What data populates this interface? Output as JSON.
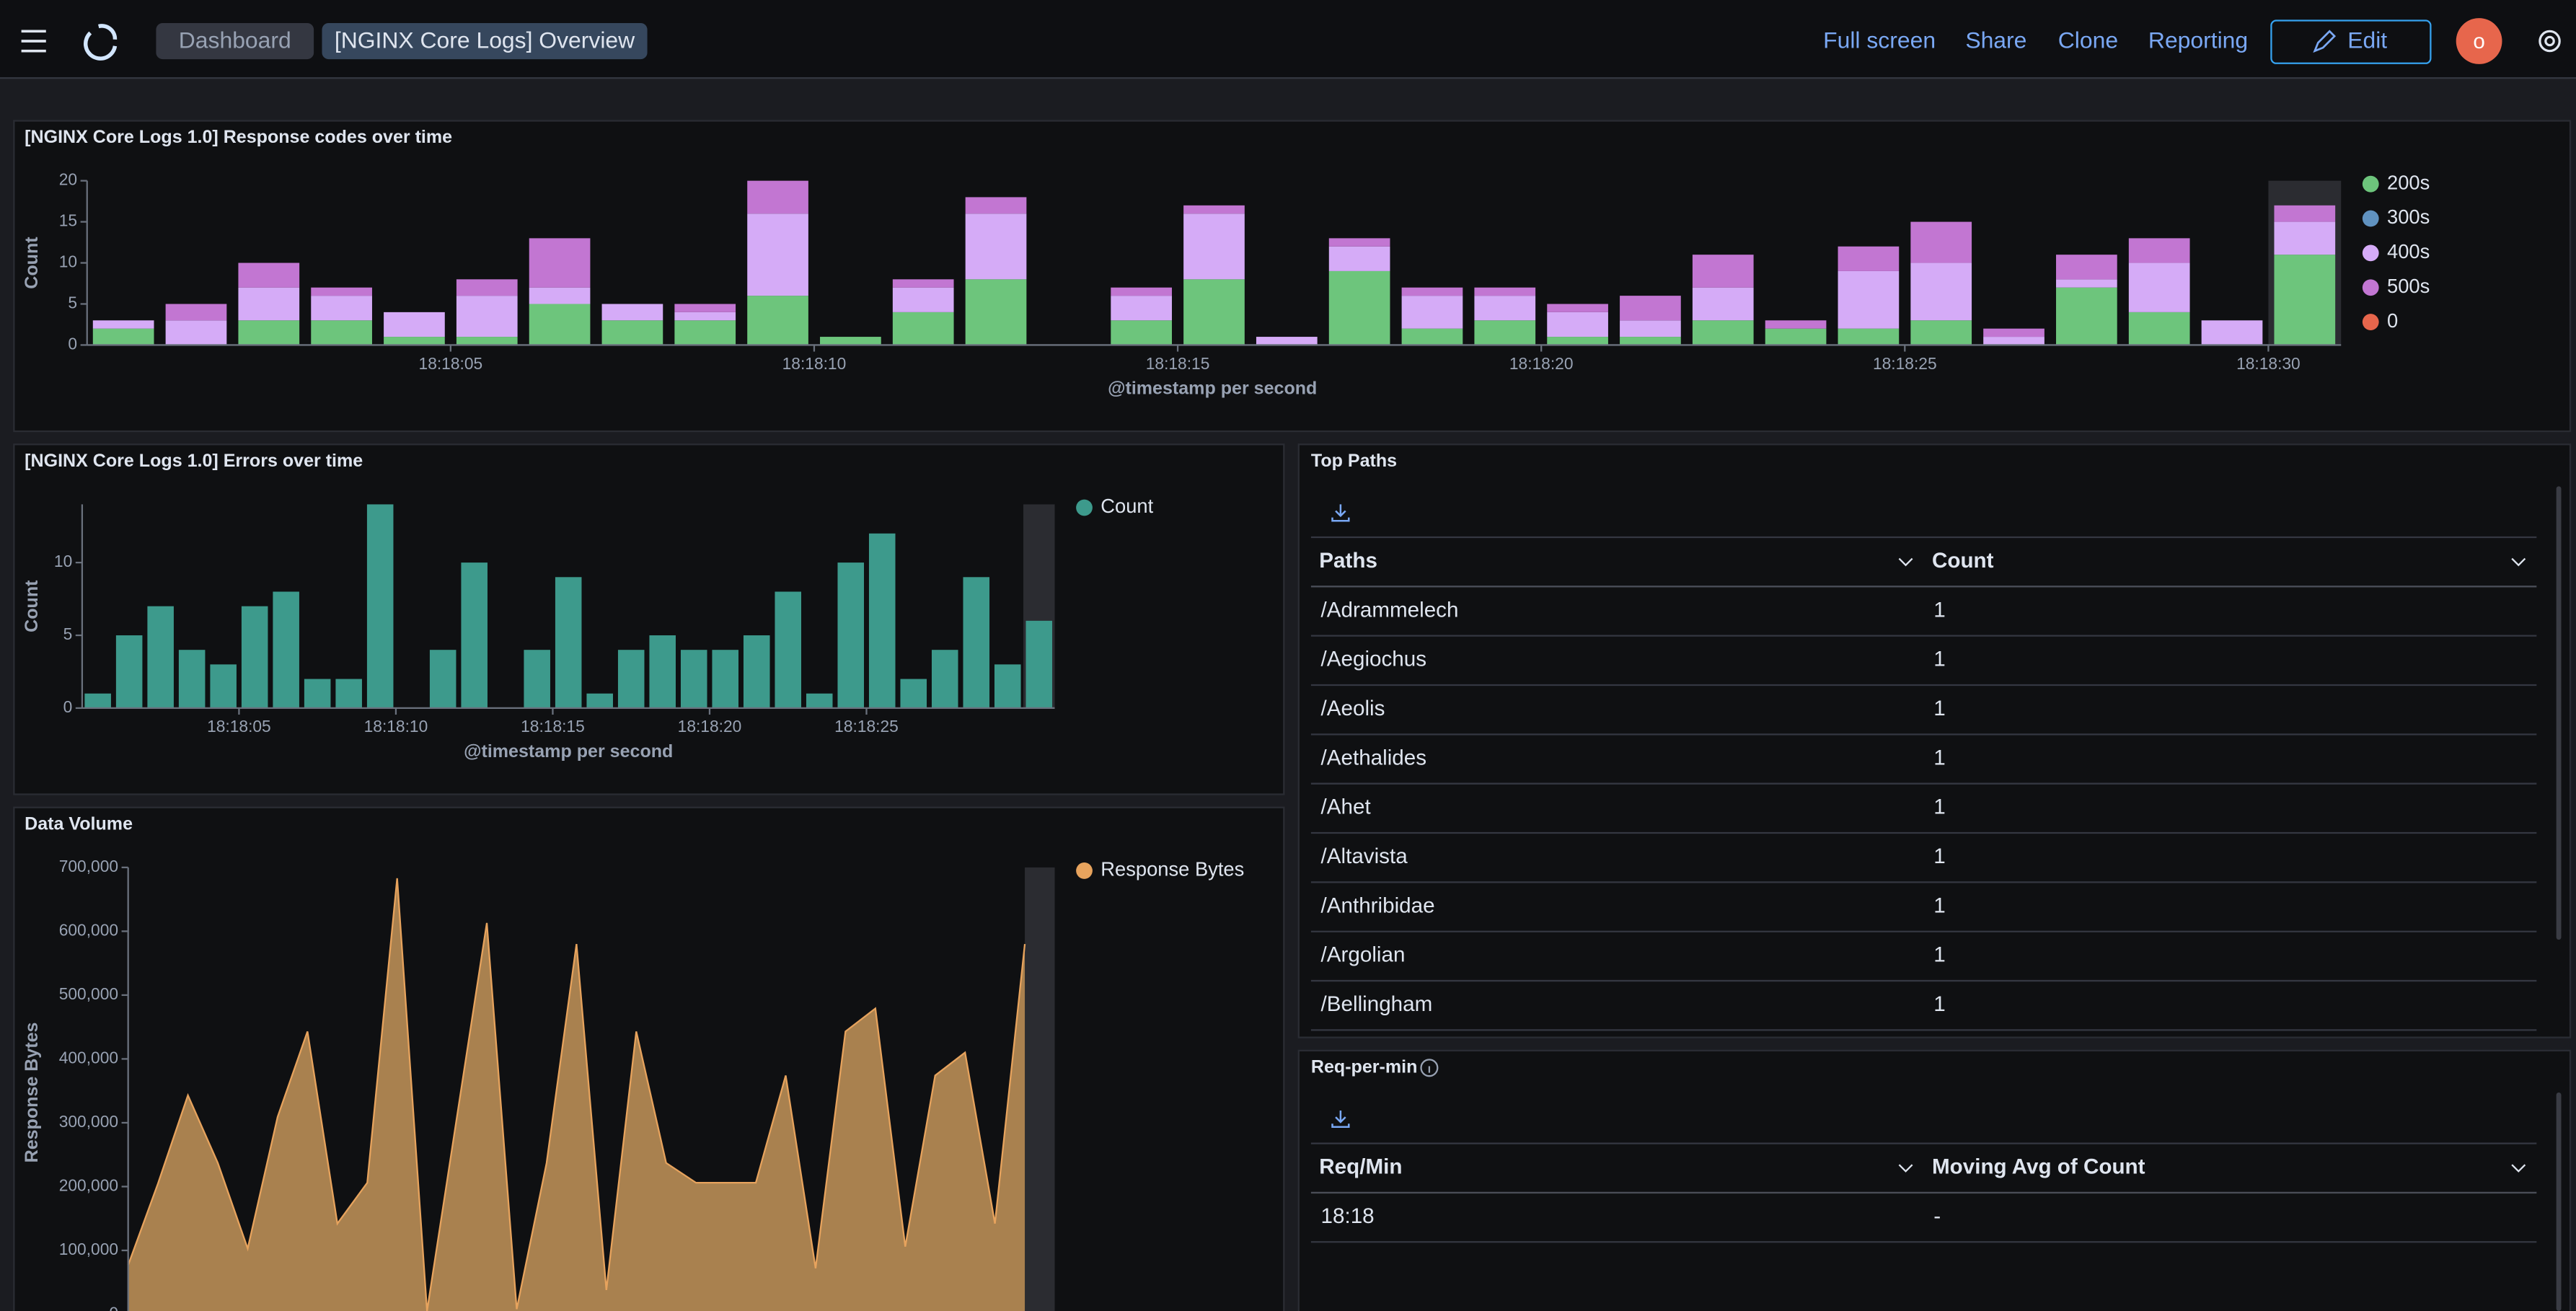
{
  "header": {
    "breadcrumbs": [
      "Dashboard",
      "[NGINX Core Logs] Overview"
    ],
    "actions": [
      "Full screen",
      "Share",
      "Clone",
      "Reporting"
    ],
    "edit": "Edit",
    "avatar": "o"
  },
  "chart_data": [
    {
      "type": "bar",
      "stacked": true,
      "title": "[NGINX Core Logs 1.0] Response codes over time",
      "x_label": "@timestamp per second",
      "y_label": "Count",
      "categories": [
        null,
        null,
        null,
        null,
        null,
        "18:18:05",
        null,
        null,
        null,
        null,
        "18:18:10",
        null,
        null,
        null,
        null,
        "18:18:15",
        null,
        null,
        null,
        null,
        "18:18:20",
        null,
        null,
        null,
        null,
        "18:18:25",
        null,
        null,
        null,
        null,
        "18:18:30"
      ],
      "series": [
        {
          "name": "200s",
          "color": "#6dc57c",
          "values": [
            2,
            0,
            3,
            3,
            1,
            1,
            5,
            3,
            3,
            6,
            1,
            4,
            8,
            0,
            3,
            8,
            0,
            9,
            2,
            3,
            1,
            1,
            3,
            2,
            2,
            3,
            0,
            7,
            4,
            0,
            11
          ]
        },
        {
          "name": "300s",
          "color": "#6092c0",
          "values": [
            0,
            0,
            0,
            0,
            0,
            0,
            0,
            0,
            0,
            0,
            0,
            0,
            0,
            0,
            0,
            0,
            0,
            0,
            0,
            0,
            0,
            0,
            0,
            0,
            0,
            0,
            0,
            0,
            0,
            0,
            0
          ]
        },
        {
          "name": "400s",
          "color": "#d5abf7",
          "values": [
            1,
            3,
            4,
            3,
            3,
            5,
            2,
            2,
            1,
            10,
            0,
            3,
            8,
            0,
            3,
            8,
            1,
            3,
            4,
            3,
            3,
            2,
            4,
            0,
            7,
            7,
            1,
            1,
            6,
            3,
            4
          ]
        },
        {
          "name": "500s",
          "color": "#c276d2",
          "values": [
            0,
            2,
            3,
            1,
            0,
            2,
            6,
            0,
            1,
            4,
            0,
            1,
            2,
            0,
            1,
            1,
            0,
            1,
            1,
            1,
            1,
            3,
            4,
            1,
            3,
            5,
            1,
            3,
            3,
            0,
            2
          ]
        },
        {
          "name": "0",
          "color": "#e7664c",
          "values": [
            0,
            0,
            0,
            0,
            0,
            0,
            0,
            0,
            0,
            0,
            0,
            0,
            0,
            0,
            0,
            0,
            0,
            0,
            0,
            0,
            0,
            0,
            0,
            0,
            0,
            0,
            0,
            0,
            0,
            0,
            0
          ]
        }
      ],
      "ylim": [
        0,
        20
      ],
      "yticks": [
        0,
        5,
        10,
        15,
        20
      ],
      "grid": false,
      "legend": "right"
    },
    {
      "type": "bar",
      "title": "[NGINX Core Logs 1.0] Errors over time",
      "x_label": "@timestamp per second",
      "y_label": "Count",
      "categories": [
        null,
        null,
        null,
        null,
        null,
        "18:18:05",
        null,
        null,
        null,
        null,
        "18:18:10",
        null,
        null,
        null,
        null,
        "18:18:15",
        null,
        null,
        null,
        null,
        "18:18:20",
        null,
        null,
        null,
        null,
        "18:18:25",
        null,
        null,
        null,
        null,
        null
      ],
      "series": [
        {
          "name": "Count",
          "color": "#3d9a8c",
          "values": [
            1,
            5,
            7,
            4,
            3,
            7,
            8,
            2,
            2,
            14,
            0,
            4,
            10,
            0,
            4,
            9,
            1,
            4,
            5,
            4,
            4,
            5,
            8,
            1,
            10,
            12,
            2,
            4,
            9,
            3,
            6
          ]
        }
      ],
      "ylim": [
        0,
        14
      ],
      "yticks": [
        0,
        5,
        10
      ],
      "grid": false,
      "legend": "right"
    },
    {
      "type": "area",
      "title": "Data Volume",
      "y_label": "Response Bytes",
      "series": [
        {
          "name": "Response Bytes",
          "color": "#e7a35d",
          "values": [
            77000,
            205000,
            343000,
            237000,
            103000,
            309000,
            443000,
            142000,
            206000,
            683000,
            5000,
            309000,
            613000,
            8000,
            237000,
            580000,
            38000,
            443000,
            237000,
            206000,
            206000,
            206000,
            374000,
            72000,
            443000,
            479000,
            106000,
            374000,
            410000,
            142000,
            580000
          ]
        }
      ],
      "ylim": [
        0,
        700000
      ],
      "yticks": [
        0,
        {
          "value": 100000,
          "label": "100,000"
        },
        {
          "value": 200000,
          "label": "200,000"
        },
        {
          "value": 300000,
          "label": "300,000"
        },
        {
          "value": 400000,
          "label": "400,000"
        },
        {
          "value": 500000,
          "label": "500,000"
        },
        {
          "value": 600000,
          "label": "600,000"
        },
        {
          "value": 700000,
          "label": "700,000"
        }
      ],
      "grid": false,
      "legend": "right"
    }
  ],
  "top_paths": {
    "title": "Top Paths",
    "columns": [
      "Paths",
      "Count"
    ],
    "rows": [
      [
        "/Adrammelech",
        1
      ],
      [
        "/Aegiochus",
        1
      ],
      [
        "/Aeolis",
        1
      ],
      [
        "/Aethalides",
        1
      ],
      [
        "/Ahet",
        1
      ],
      [
        "/Altavista",
        1
      ],
      [
        "/Anthribidae",
        1
      ],
      [
        "/Argolian",
        1
      ],
      [
        "/Bellingham",
        1
      ]
    ]
  },
  "req_per_min": {
    "title": "Req-per-min",
    "columns": [
      "Req/Min",
      "Moving Avg of Count"
    ],
    "rows": [
      [
        "18:18",
        "-"
      ]
    ]
  }
}
